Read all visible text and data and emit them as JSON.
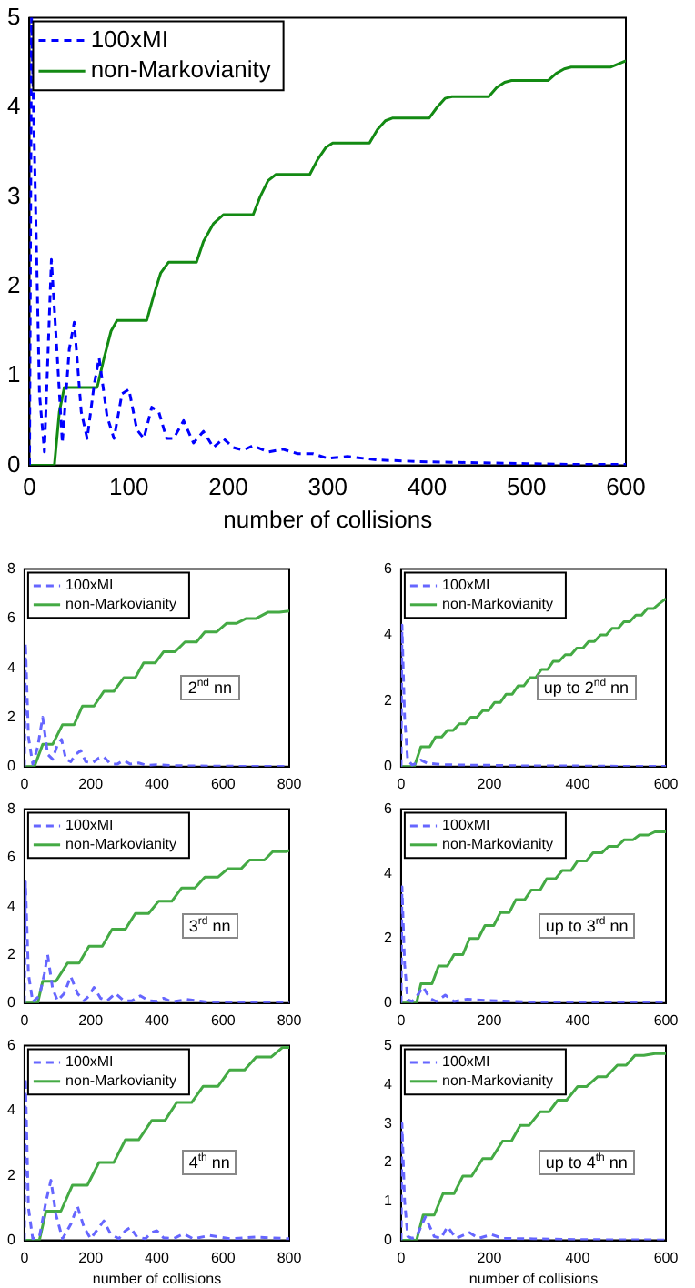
{
  "chart_data": [
    {
      "type": "line",
      "xlabel": "number of collisions",
      "xlim": [
        0,
        600
      ],
      "xticks": [
        0,
        100,
        200,
        300,
        400,
        500,
        600
      ],
      "ylim": [
        0,
        5
      ],
      "yticks": [
        0,
        1,
        2,
        3,
        4,
        5
      ],
      "legend": "top left",
      "series": [
        {
          "name": "100xMI",
          "color": "#0000ff",
          "line_style": "dashed",
          "x": [
            0,
            2,
            5,
            10,
            15,
            22,
            28,
            33,
            40,
            45,
            52,
            58,
            65,
            70,
            78,
            85,
            93,
            100,
            108,
            115,
            123,
            130,
            138,
            145,
            155,
            165,
            175,
            185,
            195,
            205,
            215,
            225,
            240,
            255,
            270,
            285,
            300,
            320,
            350,
            400,
            450,
            500,
            550,
            600
          ],
          "values": [
            0,
            5,
            3.5,
            0.8,
            0.15,
            2.3,
            1.2,
            0.25,
            1.3,
            1.6,
            0.6,
            0.3,
            0.9,
            1.2,
            0.55,
            0.3,
            0.8,
            0.85,
            0.4,
            0.3,
            0.65,
            0.6,
            0.3,
            0.3,
            0.5,
            0.25,
            0.38,
            0.2,
            0.3,
            0.2,
            0.17,
            0.22,
            0.15,
            0.18,
            0.13,
            0.13,
            0.08,
            0.1,
            0.06,
            0.04,
            0.03,
            0.02,
            0.01,
            0.01
          ]
        },
        {
          "name": "non-Markovianity",
          "color": "#138a13",
          "line_style": "solid",
          "x": [
            0,
            25,
            30,
            35,
            68,
            75,
            82,
            88,
            118,
            125,
            132,
            140,
            168,
            175,
            185,
            195,
            225,
            232,
            240,
            248,
            282,
            290,
            298,
            305,
            342,
            350,
            358,
            365,
            402,
            410,
            418,
            425,
            462,
            470,
            478,
            485,
            522,
            530,
            538,
            545,
            585,
            600
          ],
          "values": [
            0,
            0,
            0.6,
            0.87,
            0.87,
            1.2,
            1.5,
            1.62,
            1.62,
            1.9,
            2.15,
            2.27,
            2.27,
            2.5,
            2.7,
            2.8,
            2.8,
            3.0,
            3.18,
            3.25,
            3.25,
            3.42,
            3.55,
            3.6,
            3.6,
            3.75,
            3.85,
            3.88,
            3.88,
            4.0,
            4.1,
            4.12,
            4.12,
            4.22,
            4.28,
            4.3,
            4.3,
            4.38,
            4.43,
            4.45,
            4.45,
            4.52
          ]
        }
      ]
    },
    {
      "type": "line",
      "annotations": [
        "2$^{nd}$ nn"
      ],
      "xlim": [
        0,
        800
      ],
      "xticks": [
        0,
        200,
        400,
        600,
        800
      ],
      "ylim": [
        0,
        8
      ],
      "yticks": [
        0,
        2,
        4,
        6,
        8
      ],
      "legend": "top left",
      "series": [
        {
          "name": "100xMI",
          "color": "#6666ff",
          "line_style": "dashed",
          "x": [
            0,
            3,
            12,
            25,
            40,
            55,
            70,
            85,
            100,
            112,
            125,
            140,
            155,
            170,
            185,
            205,
            225,
            240,
            260,
            280,
            300,
            320,
            345,
            370,
            400,
            450,
            500,
            600,
            700,
            800
          ],
          "values": [
            0,
            5,
            1.2,
            0.1,
            0.8,
            2.0,
            0.5,
            0.3,
            0.9,
            1.1,
            0.3,
            0.2,
            0.5,
            0.65,
            0.2,
            0.15,
            0.35,
            0.4,
            0.1,
            0.1,
            0.25,
            0.1,
            0.15,
            0.05,
            0.08,
            0.04,
            0.03,
            0.02,
            0.01,
            0.01
          ]
        },
        {
          "name": "non-Markovianity",
          "color": "#44aa44",
          "line_style": "solid",
          "x": [
            0,
            30,
            55,
            85,
            115,
            150,
            175,
            210,
            240,
            270,
            300,
            335,
            360,
            395,
            420,
            455,
            485,
            520,
            545,
            580,
            610,
            640,
            670,
            700,
            735,
            770,
            800
          ],
          "values": [
            0,
            0,
            0.9,
            0.9,
            1.7,
            1.7,
            2.45,
            2.45,
            3.05,
            3.05,
            3.6,
            3.6,
            4.2,
            4.2,
            4.65,
            4.65,
            5.05,
            5.05,
            5.45,
            5.45,
            5.8,
            5.8,
            6.0,
            6.0,
            6.25,
            6.25,
            6.3
          ]
        }
      ]
    },
    {
      "type": "line",
      "annotations": [
        "up to 2$^{nd}$ nn"
      ],
      "xlim": [
        0,
        600
      ],
      "xticks": [
        0,
        200,
        400,
        600
      ],
      "ylim": [
        0,
        6
      ],
      "yticks": [
        0,
        2,
        4,
        6
      ],
      "legend": "top left",
      "series": [
        {
          "name": "100xMI",
          "color": "#6666ff",
          "line_style": "dashed",
          "x": [
            0,
            2,
            8,
            15,
            25,
            35,
            45,
            60,
            80,
            100,
            130,
            200,
            300,
            400,
            500,
            600
          ],
          "values": [
            0,
            4.3,
            1.5,
            0.2,
            0.05,
            0.1,
            0.2,
            0.1,
            0.08,
            0.06,
            0.05,
            0.04,
            0.02,
            0.02,
            0.01,
            0.01
          ]
        },
        {
          "name": "non-Markovianity",
          "color": "#44aa44",
          "line_style": "solid",
          "x": [
            0,
            30,
            45,
            65,
            78,
            92,
            105,
            118,
            132,
            145,
            158,
            172,
            185,
            198,
            212,
            225,
            238,
            252,
            265,
            278,
            292,
            305,
            318,
            332,
            345,
            358,
            372,
            385,
            398,
            412,
            425,
            438,
            452,
            465,
            478,
            492,
            505,
            518,
            532,
            545,
            558,
            572,
            585,
            600
          ],
          "values": [
            0,
            0,
            0.6,
            0.6,
            0.9,
            0.9,
            1.1,
            1.1,
            1.3,
            1.3,
            1.5,
            1.5,
            1.7,
            1.7,
            1.95,
            1.95,
            2.2,
            2.2,
            2.45,
            2.45,
            2.7,
            2.7,
            2.95,
            2.95,
            3.2,
            3.2,
            3.4,
            3.4,
            3.6,
            3.6,
            3.8,
            3.8,
            4.0,
            4.0,
            4.2,
            4.2,
            4.4,
            4.4,
            4.6,
            4.6,
            4.8,
            4.8,
            4.95,
            5.1
          ]
        }
      ]
    },
    {
      "type": "line",
      "annotations": [
        "3$^{rd}$ nn"
      ],
      "xlim": [
        0,
        800
      ],
      "xticks": [
        0,
        200,
        400,
        600,
        800
      ],
      "ylim": [
        0,
        8
      ],
      "yticks": [
        0,
        2,
        4,
        6,
        8
      ],
      "legend": "top left",
      "series": [
        {
          "name": "100xMI",
          "color": "#6666ff",
          "line_style": "dashed",
          "x": [
            0,
            3,
            12,
            25,
            45,
            60,
            70,
            85,
            100,
            120,
            140,
            160,
            180,
            195,
            210,
            230,
            250,
            275,
            300,
            325,
            350,
            375,
            400,
            420,
            445,
            490,
            550,
            650,
            800
          ],
          "values": [
            0,
            5,
            1.2,
            0.05,
            0.3,
            1.2,
            2.0,
            0.6,
            0.1,
            0.4,
            1.1,
            0.4,
            0.1,
            0.3,
            0.65,
            0.2,
            0.1,
            0.4,
            0.1,
            0.1,
            0.3,
            0.1,
            0.08,
            0.2,
            0.05,
            0.15,
            0.05,
            0.03,
            0.02
          ]
        },
        {
          "name": "non-Markovianity",
          "color": "#44aa44",
          "line_style": "solid",
          "x": [
            0,
            40,
            55,
            95,
            130,
            165,
            195,
            235,
            265,
            305,
            335,
            375,
            405,
            445,
            475,
            515,
            545,
            585,
            615,
            655,
            680,
            725,
            750,
            790,
            800
          ],
          "values": [
            0,
            0,
            0.9,
            0.9,
            1.65,
            1.65,
            2.35,
            2.35,
            3.05,
            3.05,
            3.7,
            3.7,
            4.2,
            4.2,
            4.75,
            4.75,
            5.2,
            5.2,
            5.55,
            5.55,
            5.9,
            5.9,
            6.25,
            6.25,
            6.3
          ]
        }
      ]
    },
    {
      "type": "line",
      "annotations": [
        "up to 3$^{rd}$ nn"
      ],
      "xlim": [
        0,
        600
      ],
      "xticks": [
        0,
        200,
        400,
        600
      ],
      "ylim": [
        0,
        6
      ],
      "yticks": [
        0,
        2,
        4,
        6
      ],
      "legend": "top left",
      "series": [
        {
          "name": "100xMI",
          "color": "#6666ff",
          "line_style": "dashed",
          "x": [
            0,
            2,
            8,
            15,
            25,
            35,
            50,
            65,
            80,
            100,
            120,
            150,
            200,
            300,
            400,
            600
          ],
          "values": [
            0,
            3.6,
            1.2,
            0.1,
            0.05,
            0.2,
            0.5,
            0.15,
            0.05,
            0.25,
            0.05,
            0.12,
            0.08,
            0.03,
            0.02,
            0.01
          ]
        },
        {
          "name": "non-Markovianity",
          "color": "#44aa44",
          "line_style": "solid",
          "x": [
            0,
            35,
            45,
            70,
            85,
            105,
            120,
            140,
            155,
            175,
            190,
            210,
            225,
            245,
            260,
            280,
            295,
            315,
            330,
            350,
            365,
            385,
            400,
            420,
            435,
            455,
            470,
            490,
            505,
            525,
            540,
            560,
            575,
            600
          ],
          "values": [
            0,
            0,
            0.6,
            0.6,
            1.15,
            1.15,
            1.5,
            1.5,
            2.0,
            2.0,
            2.4,
            2.4,
            2.8,
            2.8,
            3.2,
            3.2,
            3.5,
            3.5,
            3.85,
            3.85,
            4.1,
            4.1,
            4.4,
            4.4,
            4.65,
            4.65,
            4.85,
            4.85,
            5.05,
            5.05,
            5.2,
            5.2,
            5.3,
            5.3
          ]
        }
      ]
    },
    {
      "type": "line",
      "xlabel": "number of collisions",
      "annotations": [
        "4$^{th}$ nn"
      ],
      "xlim": [
        0,
        800
      ],
      "xticks": [
        0,
        200,
        400,
        600,
        800
      ],
      "ylim": [
        0,
        6
      ],
      "yticks": [
        0,
        2,
        4,
        6
      ],
      "legend": "top left",
      "series": [
        {
          "name": "100xMI",
          "color": "#6666ff",
          "line_style": "dashed",
          "x": [
            0,
            3,
            12,
            25,
            45,
            65,
            80,
            95,
            115,
            140,
            160,
            180,
            200,
            225,
            240,
            260,
            285,
            305,
            320,
            340,
            365,
            385,
            400,
            420,
            450,
            480,
            510,
            560,
            620,
            700,
            800
          ],
          "values": [
            0,
            5,
            1.0,
            0.05,
            0.1,
            1.2,
            1.85,
            0.8,
            0.05,
            0.5,
            1.05,
            0.4,
            0.05,
            0.4,
            0.6,
            0.2,
            0.05,
            0.3,
            0.4,
            0.1,
            0.05,
            0.25,
            0.3,
            0.08,
            0.05,
            0.2,
            0.05,
            0.15,
            0.05,
            0.1,
            0.05
          ]
        },
        {
          "name": "non-Markovianity",
          "color": "#44aa44",
          "line_style": "solid",
          "x": [
            0,
            45,
            65,
            110,
            145,
            190,
            225,
            270,
            305,
            345,
            385,
            425,
            460,
            505,
            540,
            585,
            620,
            665,
            700,
            745,
            780,
            800
          ],
          "values": [
            0,
            0,
            0.9,
            0.9,
            1.7,
            1.7,
            2.4,
            2.4,
            3.1,
            3.1,
            3.7,
            3.7,
            4.25,
            4.25,
            4.75,
            4.75,
            5.25,
            5.25,
            5.65,
            5.65,
            5.95,
            5.95
          ]
        }
      ]
    },
    {
      "type": "line",
      "xlabel": "number of collisions",
      "annotations": [
        "up to 4$^{th}$ nn"
      ],
      "xlim": [
        0,
        600
      ],
      "xticks": [
        0,
        200,
        400,
        600
      ],
      "ylim": [
        0,
        5
      ],
      "yticks": [
        0,
        1,
        2,
        3,
        4,
        5
      ],
      "legend": "top left",
      "series": [
        {
          "name": "100xMI",
          "color": "#6666ff",
          "line_style": "dashed",
          "x": [
            0,
            2,
            8,
            15,
            25,
            35,
            55,
            75,
            90,
            105,
            125,
            155,
            175,
            205,
            230,
            300,
            400,
            600
          ],
          "values": [
            0,
            3,
            1.0,
            0.1,
            0.05,
            0.1,
            0.6,
            0.1,
            0.05,
            0.35,
            0.05,
            0.2,
            0.05,
            0.15,
            0.05,
            0.04,
            0.02,
            0.01
          ]
        },
        {
          "name": "non-Markovianity",
          "color": "#44aa44",
          "line_style": "solid",
          "x": [
            0,
            35,
            50,
            75,
            95,
            120,
            140,
            160,
            185,
            205,
            230,
            250,
            270,
            290,
            315,
            335,
            355,
            375,
            400,
            420,
            445,
            465,
            490,
            510,
            530,
            550,
            575,
            600
          ],
          "values": [
            0,
            0,
            0.65,
            0.65,
            1.2,
            1.2,
            1.65,
            1.65,
            2.1,
            2.1,
            2.55,
            2.55,
            2.95,
            2.95,
            3.3,
            3.3,
            3.6,
            3.6,
            3.95,
            3.95,
            4.2,
            4.2,
            4.5,
            4.5,
            4.75,
            4.75,
            4.8,
            4.8
          ]
        }
      ]
    }
  ]
}
